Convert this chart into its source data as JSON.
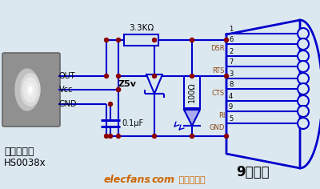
{
  "bg_color": "#dce8f0",
  "cc": "#0000cc",
  "dc": "#8b0000",
  "tk": "#000000",
  "br": "#8b4513",
  "or": "#cc6600",
  "website": "elecfans",
  "website_dot": ".",
  "website2": "com",
  "website3": " 电子发烧友",
  "title": "9针串口",
  "sub1": "红外接收头",
  "sub2": "HS0038x",
  "resistor": "3.3KΩ",
  "cap_label": "0.1μF",
  "zener_label": "Z5v",
  "res2_label": "100Ω",
  "out_label": "OUT",
  "vcc_label": "Vcc",
  "gnd_label": "GND"
}
